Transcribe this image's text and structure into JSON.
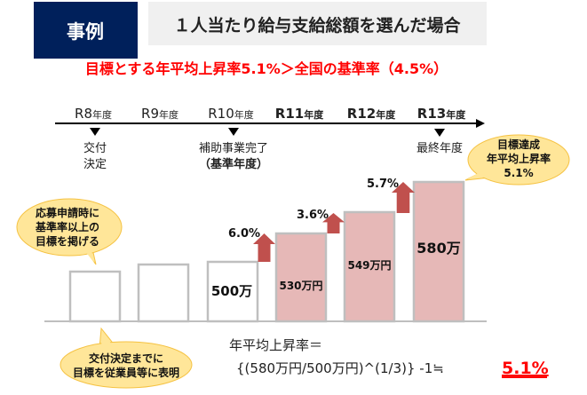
{
  "header": {
    "tag": "事例",
    "title": "１人当たり給与支給総額を選んだ場合"
  },
  "subtitle": "目標とする年平均上昇率5.1%＞全国の基準率（4.5%）",
  "timeline": {
    "years": [
      {
        "num": "R8",
        "unit": "年度",
        "bold": false
      },
      {
        "num": "R9",
        "unit": "年度",
        "bold": false
      },
      {
        "num": "R10",
        "unit": "年度",
        "bold": false
      },
      {
        "num": "R11",
        "unit": "年度",
        "bold": true
      },
      {
        "num": "R12",
        "unit": "年度",
        "bold": true
      },
      {
        "num": "R13",
        "unit": "年度",
        "bold": true
      }
    ],
    "events": {
      "r8_line1": "交付",
      "r8_line2": "決定",
      "r10_line1": "補助事業完了",
      "r10_line2": "（基準年度）",
      "r13_line1": "最終年度"
    }
  },
  "bars": [
    {
      "label": "",
      "highlighted": false
    },
    {
      "label": "",
      "highlighted": false
    },
    {
      "label": "500万",
      "highlighted": false
    },
    {
      "label": "530万円",
      "highlighted": true
    },
    {
      "label": "549万円",
      "highlighted": true
    },
    {
      "label": "580万",
      "highlighted": true
    }
  ],
  "growth": [
    "6.0%",
    "3.6%",
    "5.7%"
  ],
  "callouts": {
    "left": [
      "応募申請時に",
      "基準率以上の",
      "目標を掲げる"
    ],
    "right": [
      "目標達成",
      "年平均上昇率",
      "5.1%"
    ],
    "bottom": [
      "交付決定までに",
      "目標を従業員等に表明"
    ]
  },
  "formula": {
    "line1": "年平均上昇率＝",
    "line2": "{(580万円/500万円)^(1/3)} -1≒",
    "result": "5.1%"
  },
  "colors": {
    "navy": "#00205b",
    "red": "#ff0000",
    "bar_pink": "#e6b8b7",
    "arrow": "#c0504d",
    "callout": "#ffe699"
  }
}
